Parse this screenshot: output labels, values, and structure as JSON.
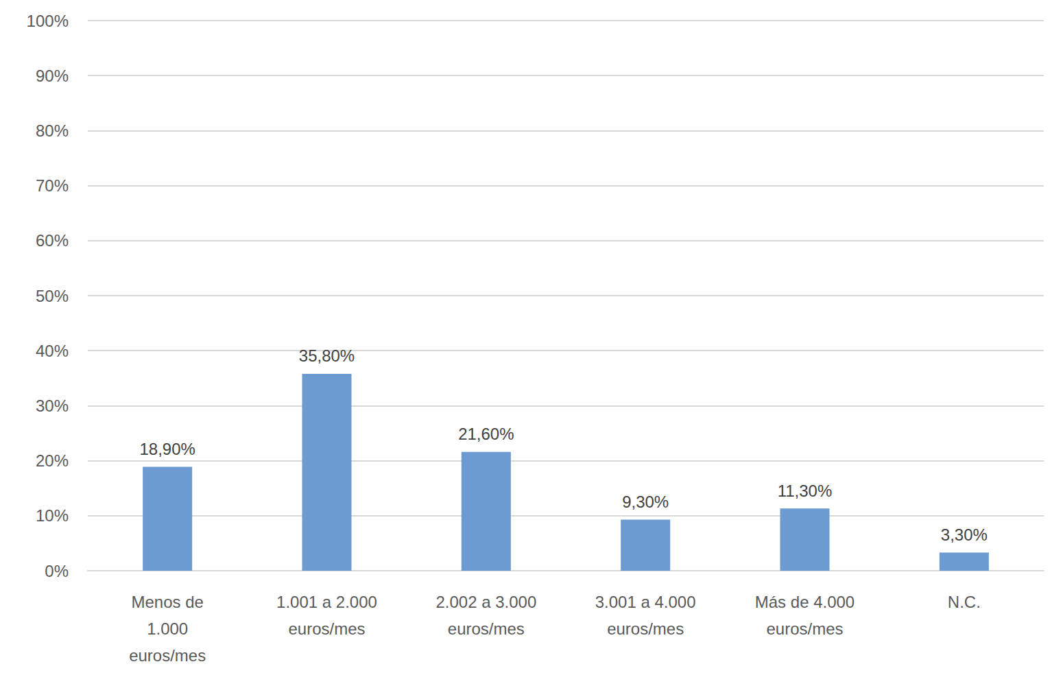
{
  "chart_data": {
    "type": "bar",
    "categories": [
      "Menos de\n1.000\neuros/mes",
      "1.001 a 2.000\neuros/mes",
      "2.002 a 3.000\neuros/mes",
      "3.001 a 4.000\neuros/mes",
      "Más de 4.000\neuros/mes",
      "N.C."
    ],
    "values": [
      18.9,
      35.8,
      21.6,
      9.3,
      11.3,
      3.3
    ],
    "value_labels": [
      "18,90%",
      "35,80%",
      "21,60%",
      "9,30%",
      "11,30%",
      "3,30%"
    ],
    "color": "#6b9bd1",
    "ylim": [
      0,
      100
    ],
    "yticks": [
      {
        "value": 0,
        "label": "0%"
      },
      {
        "value": 10,
        "label": "10%"
      },
      {
        "value": 20,
        "label": "20%"
      },
      {
        "value": 30,
        "label": "30%"
      },
      {
        "value": 40,
        "label": "40%"
      },
      {
        "value": 50,
        "label": "50%"
      },
      {
        "value": 60,
        "label": "60%"
      },
      {
        "value": 70,
        "label": "70%"
      },
      {
        "value": 80,
        "label": "80%"
      },
      {
        "value": 90,
        "label": "90%"
      },
      {
        "value": 100,
        "label": "100%"
      }
    ],
    "grid": true,
    "data_labels": true
  }
}
